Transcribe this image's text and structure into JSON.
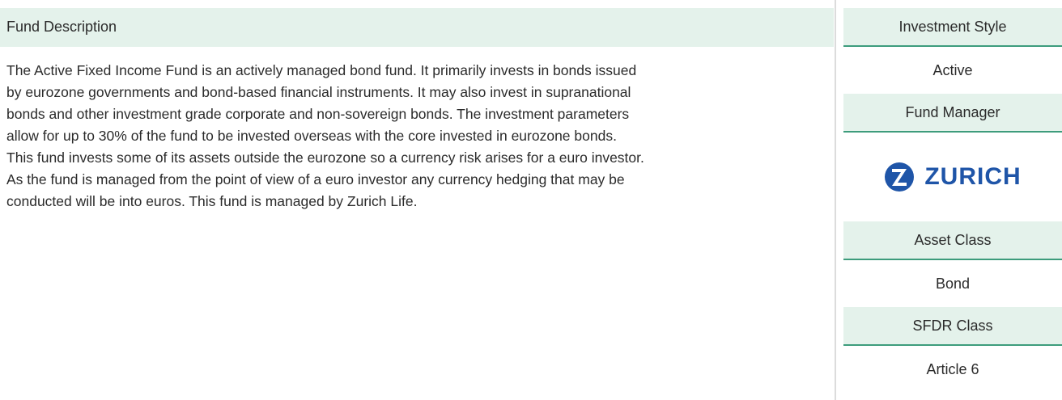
{
  "description": {
    "title": "Fund Description",
    "text": "The Active Fixed Income Fund is an actively managed bond fund. It primarily invests in bonds issued by eurozone governments and bond-based financial instruments. It may also invest in supranational bonds and other investment grade corporate and non-sovereign bonds. The investment parameters allow for up to 30% of the fund to be invested overseas with the core invested in eurozone bonds. This fund invests some of its assets outside the eurozone so a currency risk arises for a euro investor. As the fund is managed from the point of view of a euro investor any currency hedging that may be conducted will be into euros. This fund is managed by Zurich Life."
  },
  "sidebar": {
    "investment_style": {
      "label": "Investment Style",
      "value": "Active"
    },
    "fund_manager": {
      "label": "Fund Manager",
      "logo_text": "ZURICH"
    },
    "asset_class": {
      "label": "Asset Class",
      "value": "Bond"
    },
    "sfdr_class": {
      "label": "SFDR Class",
      "value": "Article 6"
    }
  }
}
